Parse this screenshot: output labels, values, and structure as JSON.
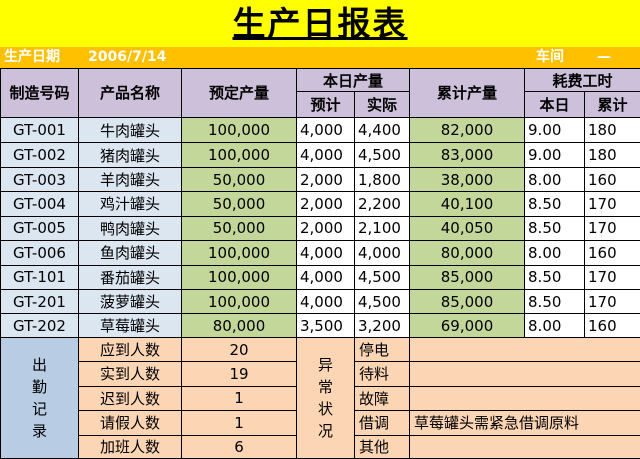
{
  "report": {
    "title": "生产日报表",
    "date_label": "生产日期",
    "date_value": "2006/7/14",
    "workshop_label": "车间",
    "workshop_value": "—"
  },
  "headers": {
    "code": "制造号码",
    "product": "产品名称",
    "planned": "预定产量",
    "today_group": "本日产量",
    "forecast": "预计",
    "actual": "实际",
    "cumulative": "累计产量",
    "hours_group": "耗费工时",
    "hours_today": "本日",
    "hours_total": "累计"
  },
  "rows": [
    {
      "code": "GT-001",
      "product": "牛肉罐头",
      "planned": "100,000",
      "forecast": "4,000",
      "actual": "4,400",
      "cumulative": "82,000",
      "hours_today": "9.00",
      "hours_total": "180"
    },
    {
      "code": "GT-002",
      "product": "猪肉罐头",
      "planned": "100,000",
      "forecast": "4,000",
      "actual": "4,500",
      "cumulative": "83,000",
      "hours_today": "9.00",
      "hours_total": "180"
    },
    {
      "code": "GT-003",
      "product": "羊肉罐头",
      "planned": "50,000",
      "forecast": "2,000",
      "actual": "1,800",
      "cumulative": "38,000",
      "hours_today": "8.00",
      "hours_total": "160"
    },
    {
      "code": "GT-004",
      "product": "鸡汁罐头",
      "planned": "50,000",
      "forecast": "2,000",
      "actual": "2,200",
      "cumulative": "40,100",
      "hours_today": "8.50",
      "hours_total": "170"
    },
    {
      "code": "GT-005",
      "product": "鸭肉罐头",
      "planned": "50,000",
      "forecast": "2,000",
      "actual": "2,100",
      "cumulative": "40,050",
      "hours_today": "8.50",
      "hours_total": "170"
    },
    {
      "code": "GT-006",
      "product": "鱼肉罐头",
      "planned": "100,000",
      "forecast": "4,000",
      "actual": "4,000",
      "cumulative": "80,000",
      "hours_today": "8.00",
      "hours_total": "160"
    },
    {
      "code": "GT-101",
      "product": "番茄罐头",
      "planned": "100,000",
      "forecast": "4,000",
      "actual": "4,500",
      "cumulative": "85,000",
      "hours_today": "8.50",
      "hours_total": "170"
    },
    {
      "code": "GT-201",
      "product": "菠萝罐头",
      "planned": "100,000",
      "forecast": "4,000",
      "actual": "4,500",
      "cumulative": "85,000",
      "hours_today": "8.50",
      "hours_total": "170"
    },
    {
      "code": "GT-202",
      "product": "草莓罐头",
      "planned": "80,000",
      "forecast": "3,500",
      "actual": "3,200",
      "cumulative": "69,000",
      "hours_today": "8.00",
      "hours_total": "160"
    }
  ],
  "attendance": {
    "section_label": [
      "出",
      "勤",
      "记",
      "录"
    ],
    "items": [
      {
        "label": "应到人数",
        "value": "20"
      },
      {
        "label": "实到人数",
        "value": "19"
      },
      {
        "label": "迟到人数",
        "value": "1"
      },
      {
        "label": "请假人数",
        "value": "1"
      },
      {
        "label": "加班人数",
        "value": "6"
      }
    ]
  },
  "exceptions": {
    "section_label": [
      "异",
      "常",
      "状",
      "况"
    ],
    "items": [
      {
        "label": "停电",
        "note": ""
      },
      {
        "label": "待料",
        "note": ""
      },
      {
        "label": "故障",
        "note": ""
      },
      {
        "label": "借调",
        "note": "草莓罐头需紧急借调原料"
      },
      {
        "label": "其他",
        "note": ""
      }
    ]
  },
  "colors": {
    "title_band": "#ffff00",
    "date_band": "#ffc000",
    "header_fill": "#ccc0da",
    "code_fill": "#dce6f1",
    "green_fill": "#c4d79b",
    "attendance_side": "#b8cce4",
    "peach_fill": "#fcd5b4"
  }
}
